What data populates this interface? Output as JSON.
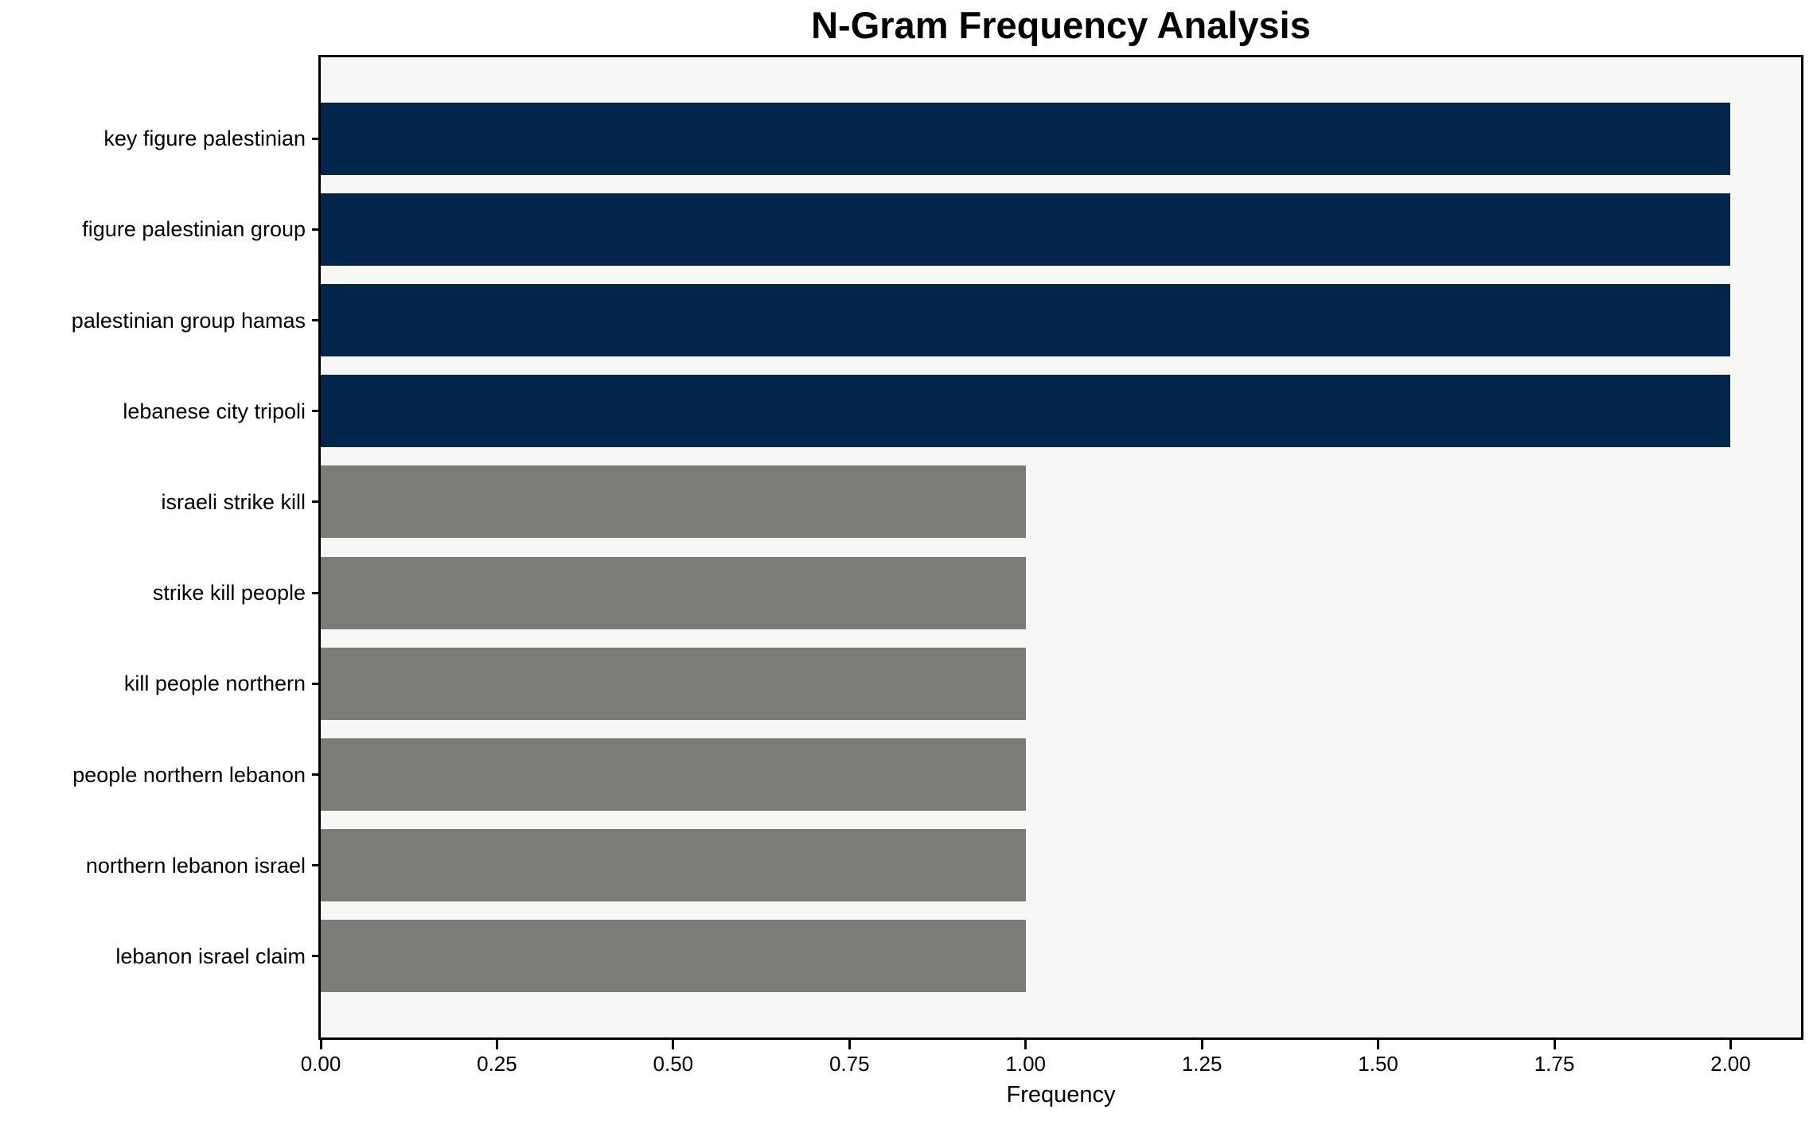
{
  "chart_data": {
    "type": "bar",
    "orientation": "horizontal",
    "title": "N-Gram Frequency Analysis",
    "xlabel": "Frequency",
    "ylabel": "",
    "categories": [
      "key figure palestinian",
      "figure palestinian group",
      "palestinian group hamas",
      "lebanese city tripoli",
      "israeli strike kill",
      "strike kill people",
      "kill people northern",
      "people northern lebanon",
      "northern lebanon israel",
      "lebanon israel claim"
    ],
    "values": [
      2,
      2,
      2,
      2,
      1,
      1,
      1,
      1,
      1,
      1
    ],
    "xlim": [
      0,
      2.1
    ],
    "xticks": [
      {
        "value": 0,
        "label": "0.00"
      },
      {
        "value": 0.25,
        "label": "0.25"
      },
      {
        "value": 0.5,
        "label": "0.50"
      },
      {
        "value": 0.75,
        "label": "0.75"
      },
      {
        "value": 1,
        "label": "1.00"
      },
      {
        "value": 1.25,
        "label": "1.25"
      },
      {
        "value": 1.5,
        "label": "1.50"
      },
      {
        "value": 1.75,
        "label": "1.75"
      },
      {
        "value": 2,
        "label": "2.00"
      }
    ],
    "grid": false,
    "legend": null,
    "bar_colors": [
      "#02254c",
      "#02254c",
      "#02254c",
      "#02254c",
      "#7b7b78",
      "#7b7b78",
      "#7b7b78",
      "#7b7b78",
      "#7b7b78",
      "#7b7b78"
    ],
    "colors": {
      "highlight_bar": "#02254c",
      "default_bar": "#7b7b78",
      "plot_background": "#f7f7f6",
      "figure_background": "#ffffff",
      "axis": "#000000",
      "text": "#000000"
    }
  }
}
